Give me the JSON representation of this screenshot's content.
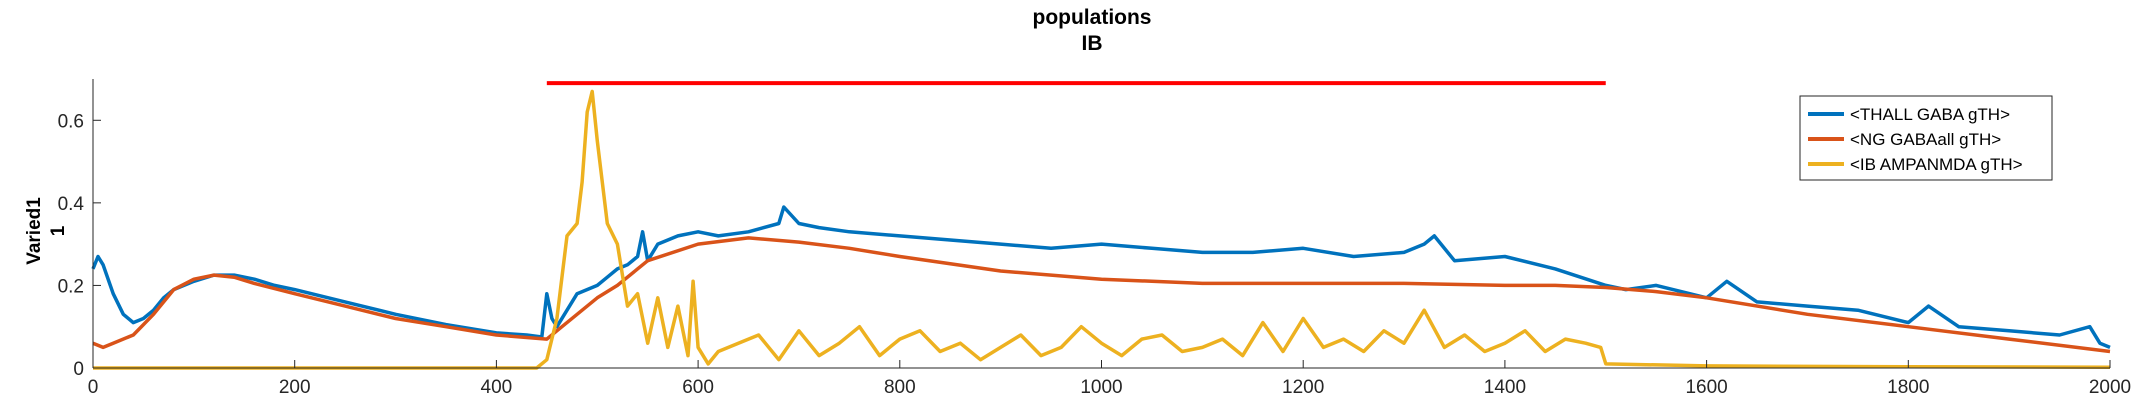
{
  "chart_data": {
    "type": "line",
    "title": "populations",
    "subtitle": "IB",
    "ylabel": [
      "Varied1",
      "1"
    ],
    "xlabel": "",
    "xlim": [
      0,
      2000
    ],
    "ylim": [
      0,
      0.7
    ],
    "xticks": [
      0,
      200,
      400,
      600,
      800,
      1000,
      1200,
      1400,
      1600,
      1800,
      2000
    ],
    "yticks": [
      0,
      0.2,
      0.4,
      0.6
    ],
    "ytick_labels": [
      "0",
      "0.2",
      "0.4",
      "0.6"
    ],
    "grid": false,
    "legend_position": "top-right",
    "stimulus_bar": {
      "x_start": 450,
      "x_end": 1500,
      "y": 0.69,
      "color": "#ff0000"
    },
    "series": [
      {
        "name": "<THALL GABA gTH>",
        "color": "#0072bd",
        "x": [
          0,
          5,
          10,
          20,
          30,
          40,
          50,
          60,
          70,
          80,
          100,
          120,
          140,
          160,
          180,
          200,
          250,
          300,
          350,
          400,
          430,
          445,
          450,
          455,
          460,
          470,
          480,
          500,
          510,
          520,
          530,
          540,
          545,
          550,
          560,
          580,
          600,
          620,
          650,
          680,
          685,
          700,
          720,
          750,
          800,
          850,
          900,
          950,
          1000,
          1050,
          1100,
          1150,
          1200,
          1250,
          1300,
          1320,
          1330,
          1350,
          1400,
          1450,
          1500,
          1520,
          1550,
          1600,
          1620,
          1650,
          1700,
          1750,
          1800,
          1820,
          1850,
          1900,
          1950,
          1980,
          1990,
          2000
        ],
        "y": [
          0.24,
          0.27,
          0.25,
          0.18,
          0.13,
          0.11,
          0.12,
          0.14,
          0.17,
          0.19,
          0.21,
          0.225,
          0.225,
          0.215,
          0.2,
          0.19,
          0.16,
          0.13,
          0.105,
          0.085,
          0.08,
          0.075,
          0.18,
          0.12,
          0.1,
          0.14,
          0.18,
          0.2,
          0.22,
          0.24,
          0.25,
          0.27,
          0.33,
          0.26,
          0.3,
          0.32,
          0.33,
          0.32,
          0.33,
          0.35,
          0.39,
          0.35,
          0.34,
          0.33,
          0.32,
          0.31,
          0.3,
          0.29,
          0.3,
          0.29,
          0.28,
          0.28,
          0.29,
          0.27,
          0.28,
          0.3,
          0.32,
          0.26,
          0.27,
          0.24,
          0.2,
          0.19,
          0.2,
          0.17,
          0.21,
          0.16,
          0.15,
          0.14,
          0.11,
          0.15,
          0.1,
          0.09,
          0.08,
          0.1,
          0.06,
          0.05
        ]
      },
      {
        "name": "<NG GABAall gTH>",
        "color": "#d95319",
        "x": [
          0,
          10,
          20,
          40,
          60,
          80,
          100,
          120,
          140,
          160,
          200,
          250,
          300,
          350,
          400,
          450,
          460,
          480,
          500,
          520,
          550,
          600,
          650,
          700,
          750,
          800,
          900,
          1000,
          1100,
          1200,
          1300,
          1400,
          1450,
          1500,
          1550,
          1600,
          1700,
          1800,
          1900,
          2000
        ],
        "y": [
          0.06,
          0.05,
          0.06,
          0.08,
          0.13,
          0.19,
          0.215,
          0.225,
          0.22,
          0.205,
          0.18,
          0.15,
          0.12,
          0.1,
          0.08,
          0.07,
          0.09,
          0.13,
          0.17,
          0.2,
          0.26,
          0.3,
          0.315,
          0.305,
          0.29,
          0.27,
          0.235,
          0.215,
          0.205,
          0.205,
          0.205,
          0.2,
          0.2,
          0.195,
          0.185,
          0.17,
          0.13,
          0.1,
          0.07,
          0.04
        ]
      },
      {
        "name": "<IB AMPANMDA gTH>",
        "color": "#edb120",
        "x": [
          0,
          100,
          200,
          300,
          400,
          440,
          450,
          460,
          470,
          480,
          485,
          490,
          495,
          500,
          505,
          510,
          520,
          530,
          540,
          550,
          560,
          570,
          580,
          590,
          595,
          600,
          610,
          620,
          640,
          660,
          680,
          700,
          720,
          740,
          760,
          780,
          800,
          820,
          840,
          860,
          880,
          900,
          920,
          940,
          960,
          980,
          1000,
          1020,
          1040,
          1060,
          1080,
          1100,
          1120,
          1140,
          1160,
          1180,
          1200,
          1220,
          1240,
          1260,
          1280,
          1300,
          1320,
          1340,
          1360,
          1380,
          1400,
          1420,
          1440,
          1460,
          1480,
          1495,
          1500,
          1600,
          1800,
          2000
        ],
        "y": [
          0,
          0,
          0,
          0,
          0,
          0,
          0.02,
          0.12,
          0.32,
          0.35,
          0.45,
          0.62,
          0.67,
          0.55,
          0.45,
          0.35,
          0.3,
          0.15,
          0.18,
          0.06,
          0.17,
          0.05,
          0.15,
          0.03,
          0.21,
          0.05,
          0.01,
          0.04,
          0.06,
          0.08,
          0.02,
          0.09,
          0.03,
          0.06,
          0.1,
          0.03,
          0.07,
          0.09,
          0.04,
          0.06,
          0.02,
          0.05,
          0.08,
          0.03,
          0.05,
          0.1,
          0.06,
          0.03,
          0.07,
          0.08,
          0.04,
          0.05,
          0.07,
          0.03,
          0.11,
          0.04,
          0.12,
          0.05,
          0.07,
          0.04,
          0.09,
          0.06,
          0.14,
          0.05,
          0.08,
          0.04,
          0.06,
          0.09,
          0.04,
          0.07,
          0.06,
          0.05,
          0.01,
          0.005,
          0.003,
          0.002
        ]
      }
    ]
  }
}
